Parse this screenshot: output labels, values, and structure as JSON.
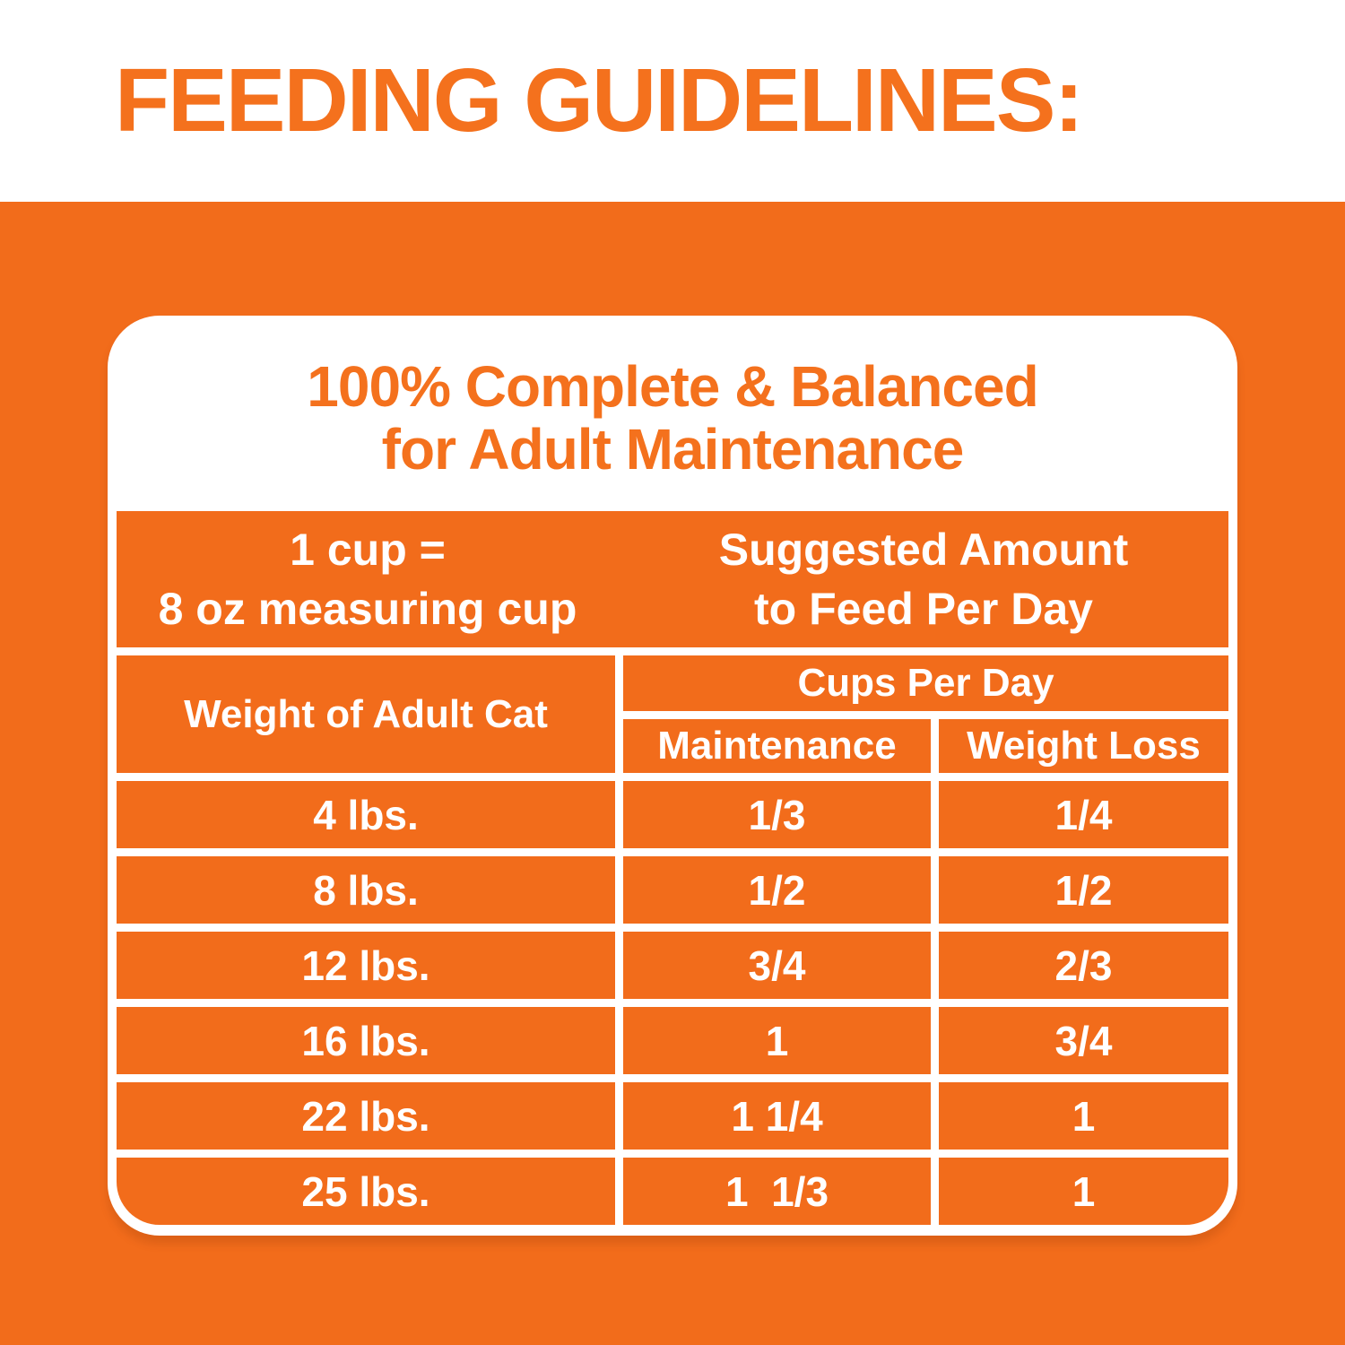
{
  "page": {
    "title": "FEEDING GUIDELINES:",
    "colors": {
      "orange_fill": "#F26C1B",
      "orange_text": "#F4711D",
      "white": "#FFFFFF"
    }
  },
  "card": {
    "heading_line1": "100% Complete & Balanced",
    "heading_line2": "for Adult Maintenance",
    "header_band": {
      "cup_info_line1": "1 cup =",
      "cup_info_line2": "8 oz measuring cup",
      "suggested_line1": "Suggested Amount",
      "suggested_line2": "to Feed Per Day"
    },
    "table": {
      "weight_header": "Weight of Adult Cat",
      "cups_header": "Cups Per Day",
      "col_maintenance": "Maintenance",
      "col_weight_loss": "Weight Loss",
      "rows": [
        {
          "weight": "4 lbs.",
          "maintenance": "1/3",
          "weight_loss": "1/4"
        },
        {
          "weight": "8 lbs.",
          "maintenance": "1/2",
          "weight_loss": "1/2"
        },
        {
          "weight": "12 lbs.",
          "maintenance": "3/4",
          "weight_loss": "2/3"
        },
        {
          "weight": "16 lbs.",
          "maintenance": "1",
          "weight_loss": "3/4"
        },
        {
          "weight": "22 lbs.",
          "maintenance": "1 1/4",
          "weight_loss": "1"
        },
        {
          "weight": "25 lbs.",
          "maintenance": "1  1/3",
          "weight_loss": "1"
        }
      ]
    }
  }
}
